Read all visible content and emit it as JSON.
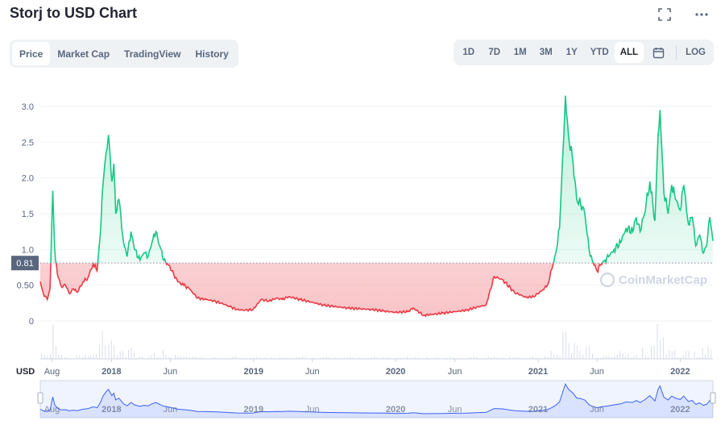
{
  "header": {
    "title": "Storj to USD Chart",
    "fullscreen_icon": "expand-icon",
    "more_icon": "more-horizontal-icon"
  },
  "tabs": [
    {
      "label": "Price",
      "active": true
    },
    {
      "label": "Market Cap",
      "active": false
    },
    {
      "label": "TradingView",
      "active": false
    },
    {
      "label": "History",
      "active": false
    }
  ],
  "ranges": [
    {
      "label": "1D",
      "active": false
    },
    {
      "label": "7D",
      "active": false
    },
    {
      "label": "1M",
      "active": false
    },
    {
      "label": "3M",
      "active": false
    },
    {
      "label": "1Y",
      "active": false
    },
    {
      "label": "YTD",
      "active": false
    },
    {
      "label": "ALL",
      "active": true
    }
  ],
  "calendar_icon": "calendar-icon",
  "log_label": "LOG",
  "currency_label": "USD",
  "watermark": "CoinMarketCap",
  "colors": {
    "up": "#16c784",
    "down": "#ea3943",
    "navigator": "#3861fb"
  },
  "chart_data": {
    "type": "area",
    "title": "Storj to USD Chart",
    "xlabel": "",
    "ylabel": "USD",
    "ylim": [
      0,
      3.2
    ],
    "yticks": [
      "0",
      "0.50",
      "1.0",
      "1.5",
      "2.0",
      "2.5",
      "3.0"
    ],
    "yvalues": [
      0,
      0.5,
      1.0,
      1.5,
      2.0,
      2.5,
      3.0
    ],
    "reference_value": 0.81,
    "reference_label": "0.81",
    "xticks": [
      {
        "label": "Aug",
        "date": "2017-08-01",
        "major": false
      },
      {
        "label": "2018",
        "date": "2018-01-01",
        "major": true
      },
      {
        "label": "Jun",
        "date": "2018-06-01",
        "major": false
      },
      {
        "label": "2019",
        "date": "2019-01-01",
        "major": true
      },
      {
        "label": "Jun",
        "date": "2019-06-01",
        "major": false
      },
      {
        "label": "2020",
        "date": "2020-01-01",
        "major": true
      },
      {
        "label": "Jun",
        "date": "2020-06-01",
        "major": false
      },
      {
        "label": "2021",
        "date": "2021-01-01",
        "major": true
      },
      {
        "label": "Jun",
        "date": "2021-06-01",
        "major": false
      },
      {
        "label": "2022",
        "date": "2022-01-01",
        "major": true
      }
    ],
    "x_range": [
      "2017-07-02",
      "2022-03-26"
    ],
    "series": [
      {
        "x": [
          "2017-07-02",
          "2017-07-10",
          "2017-07-20",
          "2017-07-27",
          "2017-08-03",
          "2017-08-08",
          "2017-08-15",
          "2017-08-25",
          "2017-09-05",
          "2017-09-15",
          "2017-09-25",
          "2017-10-05",
          "2017-10-20",
          "2017-11-01",
          "2017-11-15",
          "2017-11-25",
          "2017-12-03",
          "2017-12-10",
          "2017-12-18",
          "2017-12-24",
          "2018-01-02",
          "2018-01-07",
          "2018-01-12",
          "2018-01-20",
          "2018-02-01",
          "2018-02-10",
          "2018-02-20",
          "2018-03-01",
          "2018-03-15",
          "2018-03-25",
          "2018-04-05",
          "2018-04-15",
          "2018-04-25",
          "2018-05-05",
          "2018-05-15",
          "2018-05-25",
          "2018-06-05",
          "2018-06-20",
          "2018-07-05",
          "2018-07-20",
          "2018-08-10",
          "2018-09-01",
          "2018-09-20",
          "2018-10-10",
          "2018-11-01",
          "2018-11-20",
          "2018-12-10",
          "2018-12-31",
          "2019-01-20",
          "2019-02-10",
          "2019-03-01",
          "2019-03-15",
          "2019-04-01",
          "2019-05-01",
          "2019-06-01",
          "2019-07-01",
          "2019-08-01",
          "2019-09-01",
          "2019-10-01",
          "2019-11-01",
          "2019-12-01",
          "2020-01-01",
          "2020-02-01",
          "2020-02-15",
          "2020-03-13",
          "2020-04-01",
          "2020-05-01",
          "2020-06-01",
          "2020-07-01",
          "2020-08-01",
          "2020-08-20",
          "2020-09-10",
          "2020-10-01",
          "2020-11-01",
          "2020-12-01",
          "2020-12-20",
          "2021-01-10",
          "2021-01-25",
          "2021-02-05",
          "2021-02-15",
          "2021-02-25",
          "2021-03-05",
          "2021-03-12",
          "2021-03-20",
          "2021-04-01",
          "2021-04-10",
          "2021-04-20",
          "2021-05-01",
          "2021-05-12",
          "2021-05-20",
          "2021-06-01",
          "2021-06-10",
          "2021-06-22",
          "2021-07-01",
          "2021-07-15",
          "2021-08-01",
          "2021-08-15",
          "2021-09-01",
          "2021-09-10",
          "2021-09-20",
          "2021-10-01",
          "2021-10-15",
          "2021-10-28",
          "2021-11-05",
          "2021-11-10",
          "2021-11-20",
          "2021-12-01",
          "2021-12-10",
          "2021-12-20",
          "2022-01-01",
          "2022-01-10",
          "2022-01-22",
          "2022-02-01",
          "2022-02-10",
          "2022-02-20",
          "2022-03-01",
          "2022-03-10",
          "2022-03-18",
          "2022-03-26"
        ],
        "values": [
          0.55,
          0.38,
          0.3,
          0.45,
          1.82,
          1.0,
          0.65,
          0.48,
          0.5,
          0.38,
          0.45,
          0.4,
          0.55,
          0.6,
          0.8,
          0.7,
          1.2,
          1.9,
          2.35,
          2.6,
          1.95,
          2.2,
          1.5,
          1.7,
          1.1,
          0.9,
          1.25,
          1.0,
          0.85,
          0.95,
          0.9,
          1.1,
          1.25,
          1.05,
          0.85,
          0.8,
          0.7,
          0.55,
          0.5,
          0.45,
          0.32,
          0.3,
          0.28,
          0.25,
          0.2,
          0.16,
          0.15,
          0.16,
          0.3,
          0.28,
          0.32,
          0.3,
          0.34,
          0.3,
          0.26,
          0.22,
          0.2,
          0.18,
          0.17,
          0.16,
          0.14,
          0.12,
          0.13,
          0.18,
          0.08,
          0.09,
          0.11,
          0.13,
          0.15,
          0.2,
          0.22,
          0.62,
          0.58,
          0.4,
          0.33,
          0.34,
          0.42,
          0.5,
          0.72,
          0.95,
          1.3,
          2.3,
          3.15,
          2.6,
          2.2,
          1.7,
          1.65,
          1.5,
          1.0,
          0.85,
          0.7,
          0.78,
          0.85,
          0.9,
          1.0,
          1.1,
          1.3,
          1.25,
          1.45,
          1.25,
          1.5,
          1.95,
          1.4,
          2.6,
          2.95,
          1.8,
          1.5,
          1.9,
          1.7,
          1.55,
          1.9,
          1.35,
          1.45,
          1.05,
          1.2,
          0.95,
          1.05,
          1.45,
          1.12
        ]
      }
    ]
  }
}
